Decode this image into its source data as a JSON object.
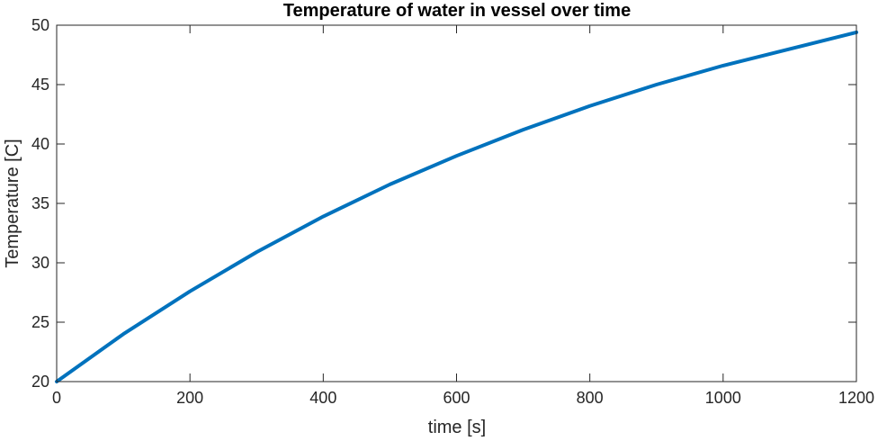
{
  "chart_data": {
    "type": "line",
    "title": "Temperature of water in vessel over time",
    "xlabel": "time [s]",
    "ylabel": "Temperature [C]",
    "xlim": [
      0,
      1200
    ],
    "ylim": [
      20,
      50
    ],
    "x_ticks": [
      "0",
      "200",
      "400",
      "600",
      "800",
      "1000",
      "1200"
    ],
    "y_ticks": [
      "20",
      "25",
      "30",
      "35",
      "40",
      "45",
      "50"
    ],
    "grid": false,
    "legend": "none",
    "series": [
      {
        "color": "#0072BD",
        "x": [
          0,
          100,
          200,
          300,
          400,
          500,
          600,
          700,
          800,
          900,
          1000,
          1100,
          1200
        ],
        "y": [
          20.0,
          24.0,
          27.6,
          30.9,
          33.9,
          36.6,
          39.0,
          41.2,
          43.2,
          45.0,
          46.6,
          48.0,
          49.4
        ]
      }
    ]
  }
}
